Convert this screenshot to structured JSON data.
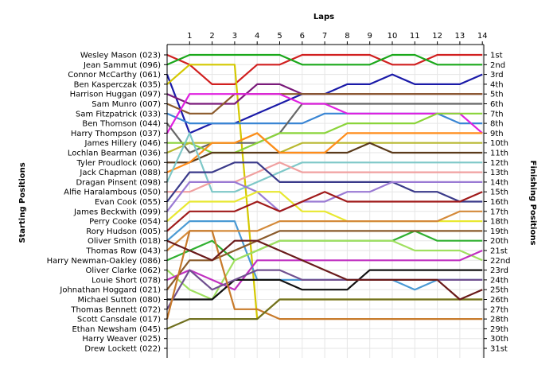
{
  "chart_data": {
    "type": "line",
    "title": "Laps",
    "xlabel": "Laps",
    "ylabel_left": "Starting Positions",
    "ylabel_right": "Finishing Positions",
    "x": [
      0,
      1,
      2,
      3,
      4,
      5,
      6,
      7,
      8,
      9,
      10,
      11,
      12,
      13,
      14
    ],
    "x_tick_labels": [
      "1",
      "2",
      "3",
      "4",
      "5",
      "6",
      "7",
      "8",
      "9",
      "10",
      "11",
      "12",
      "13",
      "14"
    ],
    "ylim": [
      1,
      31
    ],
    "y_inverted": true,
    "grid": true,
    "starting_positions": [
      "Wesley Mason (023)",
      "Jean Sammut (096)",
      "Connor McCarthy (061)",
      "Ben Kasperczak (035)",
      "Harrison Huggan (097)",
      "Sam Munro (007)",
      "Sam Fitzpatrick (033)",
      "Ben Thomson (044)",
      "Harry Thompson (037)",
      "James Hillery (046)",
      "Lochlan Bearman (036)",
      "Tyler Proudlock (060)",
      "Jack Chapman (088)",
      "Dragan Pinsent (098)",
      "Alfie Haralambous (050)",
      "Evan Cook (055)",
      "James Beckwith (099)",
      "Perry Cooke (054)",
      "Rory Hudson (005)",
      "Oliver Smith (018)",
      "Thomas Row (043)",
      "Harry Newman-Oakley (086)",
      "Oliver Clarke (062)",
      "Louie Short (078)",
      "Johnathan Hoggard (021)",
      "Michael Sutton (080)",
      "Thomas Bennett (072)",
      "Scott Cansdale (017)",
      "Ethan Newsham (045)",
      "Harry Weaver (025)",
      "Drew Lockett (022)"
    ],
    "finishing_positions": [
      "1st",
      "2nd",
      "3rd",
      "4th",
      "5th",
      "6th",
      "7th",
      "8th",
      "9th",
      "10th",
      "11th",
      "12th",
      "13th",
      "14th",
      "15th",
      "16th",
      "17th",
      "18th",
      "19th",
      "20th",
      "21st",
      "22nd",
      "23rd",
      "24th",
      "25th",
      "26th",
      "27th",
      "28th",
      "29th",
      "30th",
      "31st"
    ],
    "series": [
      {
        "color": "#d11f1f",
        "values": [
          1,
          2,
          4,
          4,
          2,
          2,
          1,
          1,
          1,
          1,
          2,
          2,
          1,
          1,
          1
        ]
      },
      {
        "color": "#1aa81a",
        "values": [
          2,
          1,
          1,
          1,
          1,
          1,
          2,
          2,
          2,
          2,
          1,
          1,
          2,
          2,
          2
        ]
      },
      {
        "color": "#1a1aa8",
        "values": [
          3,
          9,
          8,
          8,
          7,
          6,
          5,
          5,
          4,
          4,
          3,
          4,
          4,
          4,
          3
        ]
      },
      {
        "color": "#d4c800",
        "values": [
          4,
          2,
          2,
          2,
          28,
          26,
          26,
          26,
          26,
          26,
          26,
          26,
          26,
          26,
          26
        ]
      },
      {
        "color": "#7a1a7a",
        "values": [
          5,
          6,
          6,
          6,
          4,
          4,
          5,
          5,
          5,
          5,
          5,
          5,
          5,
          5,
          5
        ]
      },
      {
        "color": "#8b5a2b",
        "values": [
          6,
          7,
          7,
          5,
          5,
          5,
          5,
          5,
          5,
          5,
          5,
          5,
          5,
          5,
          5
        ]
      },
      {
        "color": "#3a86d4",
        "values": [
          7,
          8,
          8,
          8,
          8,
          8,
          8,
          7,
          7,
          7,
          7,
          7,
          7,
          8,
          8
        ]
      },
      {
        "color": "#666666",
        "values": [
          8,
          11,
          10,
          10,
          10,
          9,
          6,
          6,
          6,
          6,
          6,
          6,
          6,
          6,
          6
        ]
      },
      {
        "color": "#e020e0",
        "values": [
          9,
          5,
          5,
          5,
          5,
          5,
          6,
          6,
          7,
          7,
          7,
          7,
          7,
          7,
          9
        ]
      },
      {
        "color": "#8ad43a",
        "values": [
          10,
          10,
          11,
          11,
          10,
          9,
          9,
          9,
          8,
          8,
          8,
          8,
          7,
          7,
          7
        ]
      },
      {
        "color": "#b8b830",
        "values": [
          11,
          10,
          10,
          10,
          9,
          11,
          10,
          10,
          10,
          10,
          10,
          10,
          10,
          10,
          10
        ]
      },
      {
        "color": "#5a3a1a",
        "values": [
          12,
          12,
          11,
          11,
          11,
          11,
          11,
          11,
          11,
          10,
          11,
          11,
          11,
          11,
          11
        ]
      },
      {
        "color": "#ff8c1a",
        "values": [
          13,
          12,
          10,
          10,
          9,
          11,
          11,
          11,
          9,
          9,
          9,
          9,
          9,
          9,
          9
        ]
      },
      {
        "color": "#7ec8c8",
        "values": [
          14,
          9,
          15,
          15,
          14,
          13,
          12,
          12,
          12,
          12,
          12,
          12,
          12,
          12,
          12
        ]
      },
      {
        "color": "#f0a0a0",
        "values": [
          15,
          15,
          14,
          14,
          13,
          12,
          13,
          13,
          13,
          13,
          13,
          13,
          13,
          13,
          13
        ]
      },
      {
        "color": "#3a3a8a",
        "values": [
          16,
          13,
          13,
          12,
          12,
          14,
          14,
          14,
          14,
          14,
          14,
          15,
          15,
          16,
          16
        ]
      },
      {
        "color": "#9a7ad4",
        "values": [
          17,
          14,
          14,
          14,
          15,
          17,
          16,
          16,
          15,
          15,
          14,
          14,
          14,
          14,
          14
        ]
      },
      {
        "color": "#e8e830",
        "values": [
          18,
          16,
          16,
          16,
          15,
          15,
          17,
          17,
          18,
          18,
          18,
          18,
          18,
          18,
          18
        ]
      },
      {
        "color": "#a01a1a",
        "values": [
          19,
          17,
          17,
          17,
          16,
          17,
          16,
          15,
          16,
          16,
          16,
          16,
          16,
          16,
          15
        ]
      },
      {
        "color": "#4a9ad4",
        "values": [
          20,
          18,
          18,
          18,
          24,
          24,
          24,
          24,
          24,
          24,
          24,
          25,
          24,
          24,
          24
        ]
      },
      {
        "color": "#d48a3a",
        "values": [
          21,
          19,
          19,
          19,
          19,
          18,
          18,
          18,
          18,
          18,
          18,
          18,
          18,
          17,
          17
        ]
      },
      {
        "color": "#30b030",
        "values": [
          22,
          21,
          20,
          22,
          21,
          20,
          20,
          20,
          20,
          20,
          20,
          19,
          20,
          20,
          20
        ]
      },
      {
        "color": "#a0e060",
        "values": [
          23,
          25,
          26,
          22,
          21,
          20,
          20,
          20,
          20,
          20,
          20,
          21,
          21,
          21,
          22
        ]
      },
      {
        "color": "#c030c0",
        "values": [
          24,
          23,
          24,
          25,
          22,
          22,
          22,
          22,
          22,
          22,
          22,
          22,
          22,
          22,
          21
        ]
      },
      {
        "color": "#8a5a2a",
        "values": [
          25,
          22,
          22,
          21,
          20,
          19,
          19,
          19,
          19,
          19,
          19,
          19,
          19,
          19,
          19
        ]
      },
      {
        "color": "#111111",
        "values": [
          26,
          26,
          26,
          24,
          24,
          24,
          25,
          25,
          25,
          23,
          23,
          23,
          23,
          23,
          23
        ]
      },
      {
        "color": "#705090",
        "values": [
          27,
          23,
          25,
          24,
          23,
          23,
          24,
          24,
          24,
          24,
          24,
          24,
          24,
          24,
          24
        ]
      },
      {
        "color": "#c87a2a",
        "values": [
          28,
          19,
          19,
          27,
          27,
          28,
          28,
          28,
          28,
          28,
          28,
          28,
          28,
          28,
          28
        ]
      },
      {
        "color": "#707020",
        "values": [
          29,
          28,
          28,
          28,
          28,
          26,
          26,
          26,
          26,
          26,
          26,
          26,
          26,
          26,
          26
        ]
      },
      {
        "color": "#6a1a1a",
        "values": [
          20,
          21,
          22,
          20,
          20,
          21,
          22,
          23,
          24,
          24,
          24,
          24,
          24,
          26,
          25
        ]
      }
    ]
  }
}
